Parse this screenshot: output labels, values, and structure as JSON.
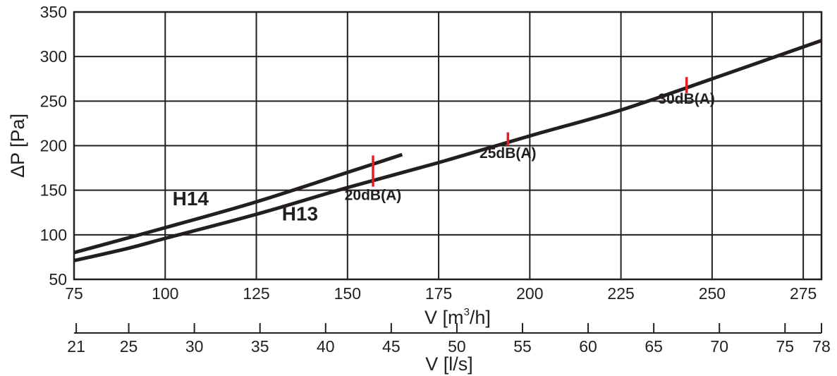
{
  "chart_data": {
    "type": "line",
    "title": "",
    "xlabel": "V [m³/h]",
    "xlabel_parts": {
      "pre": "V [m",
      "sup": "3",
      "post": "/h]"
    },
    "ylabel": "ΔP [Pa]",
    "xlim": [
      75,
      280
    ],
    "ylim": [
      50,
      350
    ],
    "x_ticks": [
      75,
      100,
      125,
      150,
      175,
      200,
      225,
      250,
      275
    ],
    "y_ticks": [
      50,
      100,
      150,
      200,
      250,
      300,
      350
    ],
    "grid": true,
    "series": [
      {
        "name": "H14",
        "x": [
          75,
          100,
          125,
          150,
          165
        ],
        "y": [
          80,
          108,
          137,
          170,
          190
        ]
      },
      {
        "name": "H13",
        "x": [
          75,
          90,
          100,
          125,
          150,
          175,
          200,
          225,
          250,
          280
        ],
        "y": [
          71,
          85,
          96,
          123,
          153,
          181,
          211,
          240,
          275,
          318
        ]
      }
    ],
    "series_label_positions": [
      {
        "name": "H14",
        "x": 102,
        "y": 133
      },
      {
        "name": "H13",
        "x": 132,
        "y": 116
      }
    ],
    "annotations": [
      {
        "label": "20dB(A)",
        "x": 157,
        "y_low": 154,
        "y_high": 189,
        "label_x": 157,
        "label_y": 139
      },
      {
        "label": "25dB(A)",
        "x": 194,
        "y_low": 200,
        "y_high": 215,
        "label_x": 194,
        "label_y": 186
      },
      {
        "label": "30dB(A)",
        "x": 243,
        "y_low": 259,
        "y_high": 277,
        "label_x": 243,
        "label_y": 247
      }
    ],
    "annotation_color": "#e31e24",
    "line_color": "#231f20",
    "secondary_axis": {
      "label": "V [l/s]",
      "ticks": [
        21,
        25,
        30,
        35,
        40,
        45,
        50,
        55,
        60,
        65,
        70,
        75,
        78
      ],
      "conversion_m3h_per_ls": 3.6
    }
  }
}
